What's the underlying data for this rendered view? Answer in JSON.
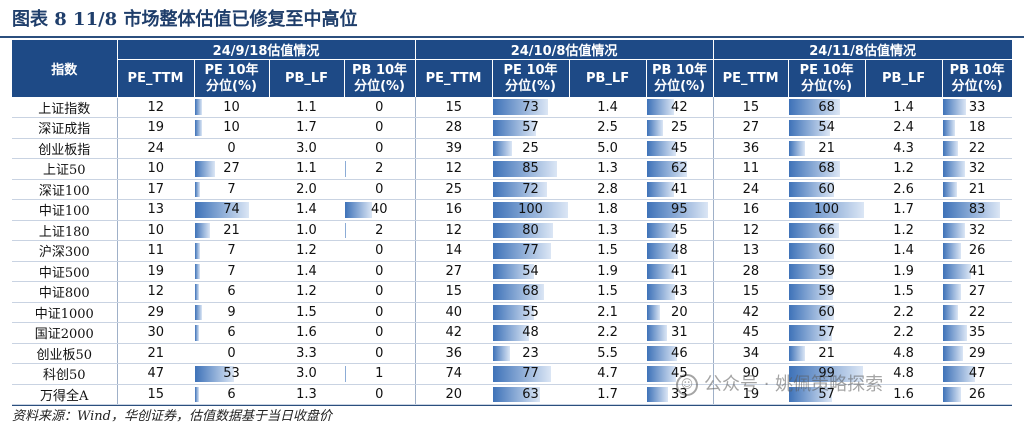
{
  "title": "图表 8   11/8 市场整体估值已修复至中高位",
  "table": {
    "index_header": "指数",
    "groups": [
      "24/9/18估值情况",
      "24/10/8估值情况",
      "24/11/8估值情况"
    ],
    "columns": [
      [
        "PE_TTM",
        "PE 10年",
        "分位(%)"
      ],
      [
        "PB_LF",
        "PB 10年",
        "分位(%)"
      ]
    ],
    "rows": [
      {
        "name": "上证指数",
        "g": [
          [
            12,
            10,
            1.1,
            0
          ],
          [
            15,
            73,
            1.4,
            42
          ],
          [
            15,
            68,
            1.4,
            33
          ]
        ]
      },
      {
        "name": "深证成指",
        "g": [
          [
            19,
            10,
            1.7,
            0
          ],
          [
            28,
            57,
            2.5,
            25
          ],
          [
            27,
            54,
            2.4,
            18
          ]
        ]
      },
      {
        "name": "创业板指",
        "g": [
          [
            24,
            0,
            3.0,
            0
          ],
          [
            39,
            25,
            5.0,
            45
          ],
          [
            36,
            21,
            4.3,
            22
          ]
        ]
      },
      {
        "name": "上证50",
        "g": [
          [
            10,
            27,
            1.1,
            2
          ],
          [
            12,
            85,
            1.3,
            62
          ],
          [
            11,
            68,
            1.2,
            32
          ]
        ]
      },
      {
        "name": "深证100",
        "g": [
          [
            17,
            7,
            2.0,
            0
          ],
          [
            25,
            72,
            2.8,
            41
          ],
          [
            24,
            60,
            2.6,
            21
          ]
        ]
      },
      {
        "name": "中证100",
        "g": [
          [
            13,
            74,
            1.4,
            40
          ],
          [
            16,
            100,
            1.8,
            95
          ],
          [
            16,
            100,
            1.7,
            83
          ]
        ]
      },
      {
        "name": "上证180",
        "g": [
          [
            10,
            21,
            1.0,
            2
          ],
          [
            12,
            80,
            1.3,
            45
          ],
          [
            12,
            66,
            1.2,
            32
          ]
        ]
      },
      {
        "name": "沪深300",
        "g": [
          [
            11,
            7,
            1.2,
            0
          ],
          [
            14,
            77,
            1.5,
            48
          ],
          [
            13,
            60,
            1.4,
            26
          ]
        ]
      },
      {
        "name": "中证500",
        "g": [
          [
            19,
            7,
            1.4,
            0
          ],
          [
            27,
            54,
            1.9,
            41
          ],
          [
            28,
            59,
            1.9,
            41
          ]
        ]
      },
      {
        "name": "中证800",
        "g": [
          [
            12,
            6,
            1.2,
            0
          ],
          [
            15,
            68,
            1.5,
            43
          ],
          [
            15,
            59,
            1.5,
            27
          ]
        ]
      },
      {
        "name": "中证1000",
        "g": [
          [
            29,
            9,
            1.5,
            0
          ],
          [
            40,
            55,
            2.1,
            20
          ],
          [
            42,
            60,
            2.2,
            22
          ]
        ]
      },
      {
        "name": "国证2000",
        "g": [
          [
            30,
            6,
            1.6,
            0
          ],
          [
            42,
            48,
            2.2,
            31
          ],
          [
            45,
            57,
            2.2,
            35
          ]
        ]
      },
      {
        "name": "创业板50",
        "g": [
          [
            21,
            0,
            3.3,
            0
          ],
          [
            36,
            23,
            5.5,
            46
          ],
          [
            34,
            21,
            4.8,
            29
          ]
        ]
      },
      {
        "name": "科创50",
        "g": [
          [
            47,
            53,
            3.0,
            1
          ],
          [
            74,
            77,
            4.7,
            45
          ],
          [
            90,
            99,
            4.8,
            47
          ]
        ]
      },
      {
        "name": "万得全A",
        "g": [
          [
            15,
            6,
            1.3,
            0
          ],
          [
            20,
            63,
            1.7,
            33
          ],
          [
            19,
            57,
            1.6,
            26
          ]
        ]
      }
    ]
  },
  "source": "资料来源：Wind，华创证券，估值数据基于当日收盘价",
  "watermark": "公众号 · 姚佩策略探索"
}
